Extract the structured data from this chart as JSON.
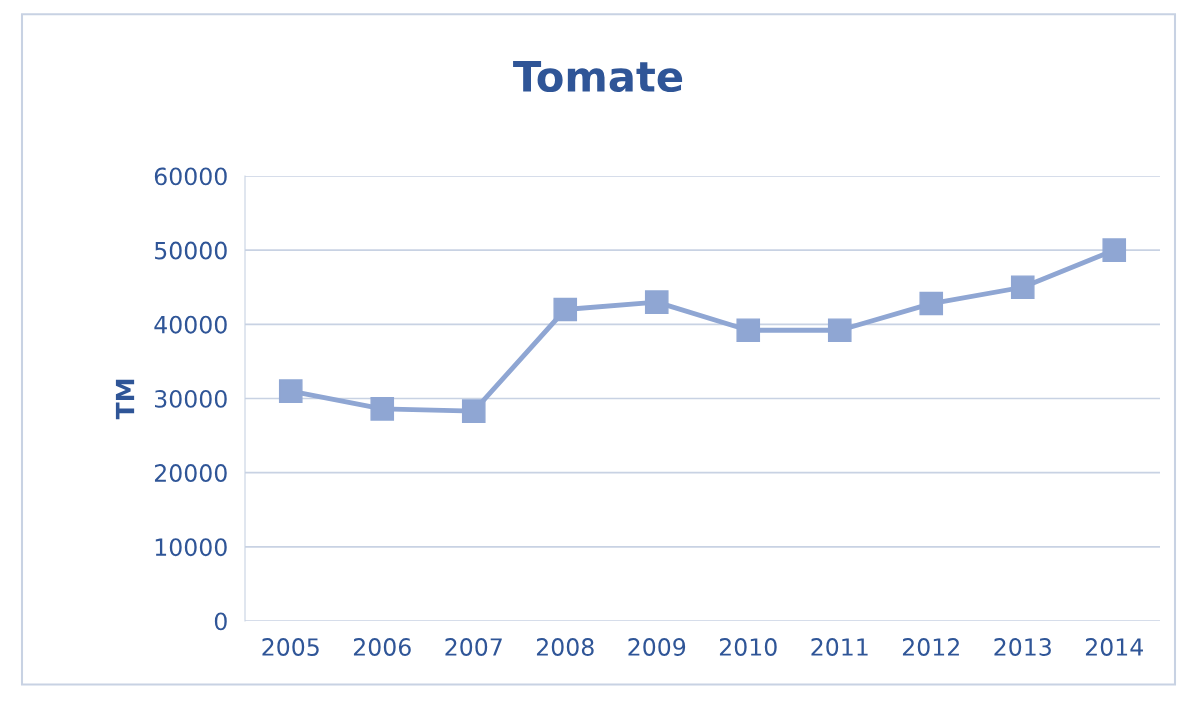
{
  "chart_data": {
    "type": "line",
    "title": "Tomate",
    "ylabel": "TM",
    "categories": [
      "2005",
      "2006",
      "2007",
      "2008",
      "2009",
      "2010",
      "2011",
      "2012",
      "2013",
      "2014"
    ],
    "values": [
      31000,
      28600,
      28300,
      42000,
      43000,
      39200,
      39200,
      42800,
      45000,
      50000
    ],
    "color": "#8fa6d3",
    "marker": "square",
    "line_style": "solid",
    "ylim": [
      0,
      60000
    ],
    "yticks": [
      0,
      10000,
      20000,
      30000,
      40000,
      50000,
      60000
    ],
    "grid": "y"
  }
}
